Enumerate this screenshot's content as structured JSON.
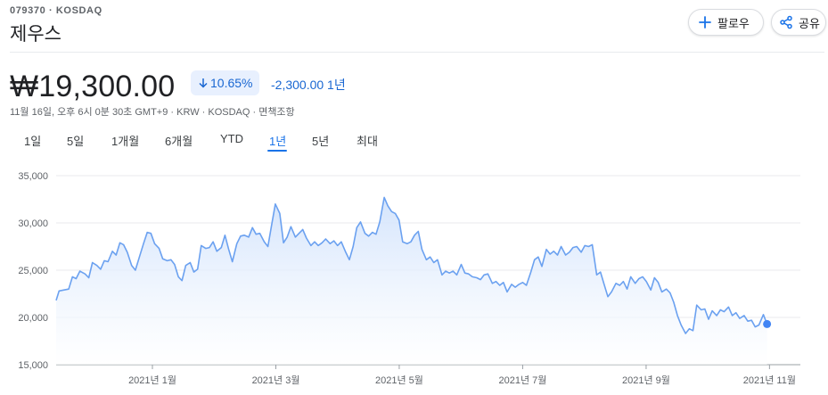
{
  "header": {
    "ticker": "079370 · KOSDAQ",
    "company": "제우스",
    "follow_label": "팔로우",
    "share_label": "공유"
  },
  "quote": {
    "price": "₩19,300.00",
    "change_pct": "10.65%",
    "change_abs": "-2,300.00 1년",
    "meta": "11월 16일, 오후 6시 0분 30초 GMT+9 · KRW · KOSDAQ · 면책조항"
  },
  "colors": {
    "accent": "#1a73e8",
    "line": "#6ba1f0",
    "area_top": "#d2e3fc"
  },
  "tabs": [
    {
      "label": "1일"
    },
    {
      "label": "5일"
    },
    {
      "label": "1개월"
    },
    {
      "label": "6개월"
    },
    {
      "label": "YTD"
    },
    {
      "label": "1년",
      "active": true
    },
    {
      "label": "5년"
    },
    {
      "label": "최대"
    }
  ],
  "chart_data": {
    "type": "area",
    "ylim": [
      15000,
      35000
    ],
    "y_ticks": [
      {
        "value": 35000,
        "label": "35,000"
      },
      {
        "value": 30000,
        "label": "30,000"
      },
      {
        "value": 25000,
        "label": "25,000"
      },
      {
        "value": 20000,
        "label": "20,000"
      },
      {
        "value": 15000,
        "label": "15,000"
      }
    ],
    "x_ticks": [
      {
        "value": 2021.0,
        "label": "2021년 1월"
      },
      {
        "value": 2021.1667,
        "label": "2021년 3월"
      },
      {
        "value": 2021.3333,
        "label": "2021년 5월"
      },
      {
        "value": 2021.5,
        "label": "2021년 7월"
      },
      {
        "value": 2021.6667,
        "label": "2021년 9월"
      },
      {
        "value": 2021.8333,
        "label": "2021년 11월"
      }
    ],
    "xlim": [
      2020.87,
      2021.875
    ],
    "series": [
      {
        "values": [
          [
            2020.87,
            21800
          ],
          [
            2020.874,
            22800
          ],
          [
            2020.88,
            22900
          ],
          [
            2020.887,
            23000
          ],
          [
            2020.892,
            24300
          ],
          [
            2020.897,
            24100
          ],
          [
            2020.902,
            24900
          ],
          [
            2020.909,
            24600
          ],
          [
            2020.914,
            24200
          ],
          [
            2020.919,
            25800
          ],
          [
            2020.925,
            25500
          ],
          [
            2020.93,
            25100
          ],
          [
            2020.935,
            26000
          ],
          [
            2020.94,
            25900
          ],
          [
            2020.946,
            27000
          ],
          [
            2020.951,
            26600
          ],
          [
            2020.956,
            27900
          ],
          [
            2020.961,
            27700
          ],
          [
            2020.966,
            26900
          ],
          [
            2020.972,
            25500
          ],
          [
            2020.977,
            25000
          ],
          [
            2020.982,
            26300
          ],
          [
            2020.988,
            27800
          ],
          [
            2020.993,
            29000
          ],
          [
            2020.998,
            28900
          ],
          [
            2021.003,
            27800
          ],
          [
            2021.009,
            27300
          ],
          [
            2021.014,
            26200
          ],
          [
            2021.02,
            26000
          ],
          [
            2021.025,
            26100
          ],
          [
            2021.03,
            25600
          ],
          [
            2021.035,
            24300
          ],
          [
            2021.04,
            23900
          ],
          [
            2021.045,
            25500
          ],
          [
            2021.051,
            25800
          ],
          [
            2021.056,
            24800
          ],
          [
            2021.061,
            25100
          ],
          [
            2021.066,
            27600
          ],
          [
            2021.072,
            27300
          ],
          [
            2021.077,
            27400
          ],
          [
            2021.082,
            28000
          ],
          [
            2021.087,
            27000
          ],
          [
            2021.093,
            27400
          ],
          [
            2021.098,
            28700
          ],
          [
            2021.103,
            27200
          ],
          [
            2021.108,
            25900
          ],
          [
            2021.114,
            27800
          ],
          [
            2021.119,
            28600
          ],
          [
            2021.124,
            28700
          ],
          [
            2021.13,
            28500
          ],
          [
            2021.135,
            29500
          ],
          [
            2021.14,
            28800
          ],
          [
            2021.145,
            28900
          ],
          [
            2021.151,
            28000
          ],
          [
            2021.156,
            27500
          ],
          [
            2021.161,
            29800
          ],
          [
            2021.166,
            32000
          ],
          [
            2021.172,
            31000
          ],
          [
            2021.177,
            27900
          ],
          [
            2021.182,
            28500
          ],
          [
            2021.187,
            29600
          ],
          [
            2021.193,
            28500
          ],
          [
            2021.198,
            28900
          ],
          [
            2021.203,
            29300
          ],
          [
            2021.208,
            28400
          ],
          [
            2021.214,
            27600
          ],
          [
            2021.219,
            28000
          ],
          [
            2021.224,
            27600
          ],
          [
            2021.229,
            27900
          ],
          [
            2021.234,
            28300
          ],
          [
            2021.24,
            27800
          ],
          [
            2021.245,
            28100
          ],
          [
            2021.25,
            27600
          ],
          [
            2021.255,
            28000
          ],
          [
            2021.261,
            26900
          ],
          [
            2021.266,
            26100
          ],
          [
            2021.271,
            27500
          ],
          [
            2021.276,
            29500
          ],
          [
            2021.281,
            30100
          ],
          [
            2021.287,
            28900
          ],
          [
            2021.292,
            28600
          ],
          [
            2021.297,
            29000
          ],
          [
            2021.302,
            28800
          ],
          [
            2021.307,
            30100
          ],
          [
            2021.313,
            32700
          ],
          [
            2021.318,
            31800
          ],
          [
            2021.323,
            31200
          ],
          [
            2021.328,
            31000
          ],
          [
            2021.333,
            30300
          ],
          [
            2021.338,
            28000
          ],
          [
            2021.344,
            27800
          ],
          [
            2021.349,
            28000
          ],
          [
            2021.354,
            28700
          ],
          [
            2021.359,
            29100
          ],
          [
            2021.364,
            27200
          ],
          [
            2021.37,
            26100
          ],
          [
            2021.375,
            26400
          ],
          [
            2021.38,
            25800
          ],
          [
            2021.385,
            26100
          ],
          [
            2021.391,
            24500
          ],
          [
            2021.396,
            24900
          ],
          [
            2021.401,
            24700
          ],
          [
            2021.406,
            24900
          ],
          [
            2021.411,
            24500
          ],
          [
            2021.417,
            25600
          ],
          [
            2021.422,
            24700
          ],
          [
            2021.427,
            24600
          ],
          [
            2021.432,
            24300
          ],
          [
            2021.438,
            24200
          ],
          [
            2021.443,
            24000
          ],
          [
            2021.448,
            24500
          ],
          [
            2021.453,
            24600
          ],
          [
            2021.459,
            23600
          ],
          [
            2021.464,
            23800
          ],
          [
            2021.469,
            23400
          ],
          [
            2021.474,
            23700
          ],
          [
            2021.479,
            22700
          ],
          [
            2021.485,
            23500
          ],
          [
            2021.49,
            23200
          ],
          [
            2021.495,
            23500
          ],
          [
            2021.5,
            23700
          ],
          [
            2021.505,
            23400
          ],
          [
            2021.511,
            24800
          ],
          [
            2021.516,
            26100
          ],
          [
            2021.521,
            26400
          ],
          [
            2021.526,
            25400
          ],
          [
            2021.532,
            27200
          ],
          [
            2021.537,
            26700
          ],
          [
            2021.542,
            27000
          ],
          [
            2021.547,
            26600
          ],
          [
            2021.552,
            27500
          ],
          [
            2021.558,
            26600
          ],
          [
            2021.563,
            26900
          ],
          [
            2021.568,
            27400
          ],
          [
            2021.573,
            27500
          ],
          [
            2021.579,
            26900
          ],
          [
            2021.584,
            27600
          ],
          [
            2021.589,
            27500
          ],
          [
            2021.594,
            27700
          ],
          [
            2021.6,
            24500
          ],
          [
            2021.605,
            24800
          ],
          [
            2021.61,
            23500
          ],
          [
            2021.615,
            22200
          ],
          [
            2021.62,
            22700
          ],
          [
            2021.626,
            23600
          ],
          [
            2021.631,
            23400
          ],
          [
            2021.636,
            23800
          ],
          [
            2021.641,
            23000
          ],
          [
            2021.646,
            24300
          ],
          [
            2021.652,
            23600
          ],
          [
            2021.657,
            24100
          ],
          [
            2021.662,
            24300
          ],
          [
            2021.667,
            23800
          ],
          [
            2021.673,
            22900
          ],
          [
            2021.678,
            24200
          ],
          [
            2021.683,
            23700
          ],
          [
            2021.688,
            22700
          ],
          [
            2021.694,
            23000
          ],
          [
            2021.699,
            22600
          ],
          [
            2021.704,
            21600
          ],
          [
            2021.709,
            20200
          ],
          [
            2021.714,
            19200
          ],
          [
            2021.72,
            18300
          ],
          [
            2021.725,
            18800
          ],
          [
            2021.73,
            18600
          ],
          [
            2021.735,
            21300
          ],
          [
            2021.741,
            20800
          ],
          [
            2021.746,
            20900
          ],
          [
            2021.751,
            19800
          ],
          [
            2021.756,
            20700
          ],
          [
            2021.762,
            20200
          ],
          [
            2021.767,
            20800
          ],
          [
            2021.772,
            20600
          ],
          [
            2021.778,
            21100
          ],
          [
            2021.783,
            20200
          ],
          [
            2021.788,
            20500
          ],
          [
            2021.793,
            19900
          ],
          [
            2021.799,
            20200
          ],
          [
            2021.804,
            19600
          ],
          [
            2021.809,
            19700
          ],
          [
            2021.814,
            19000
          ],
          [
            2021.819,
            19200
          ],
          [
            2021.825,
            20300
          ],
          [
            2021.83,
            19300
          ]
        ]
      }
    ]
  }
}
